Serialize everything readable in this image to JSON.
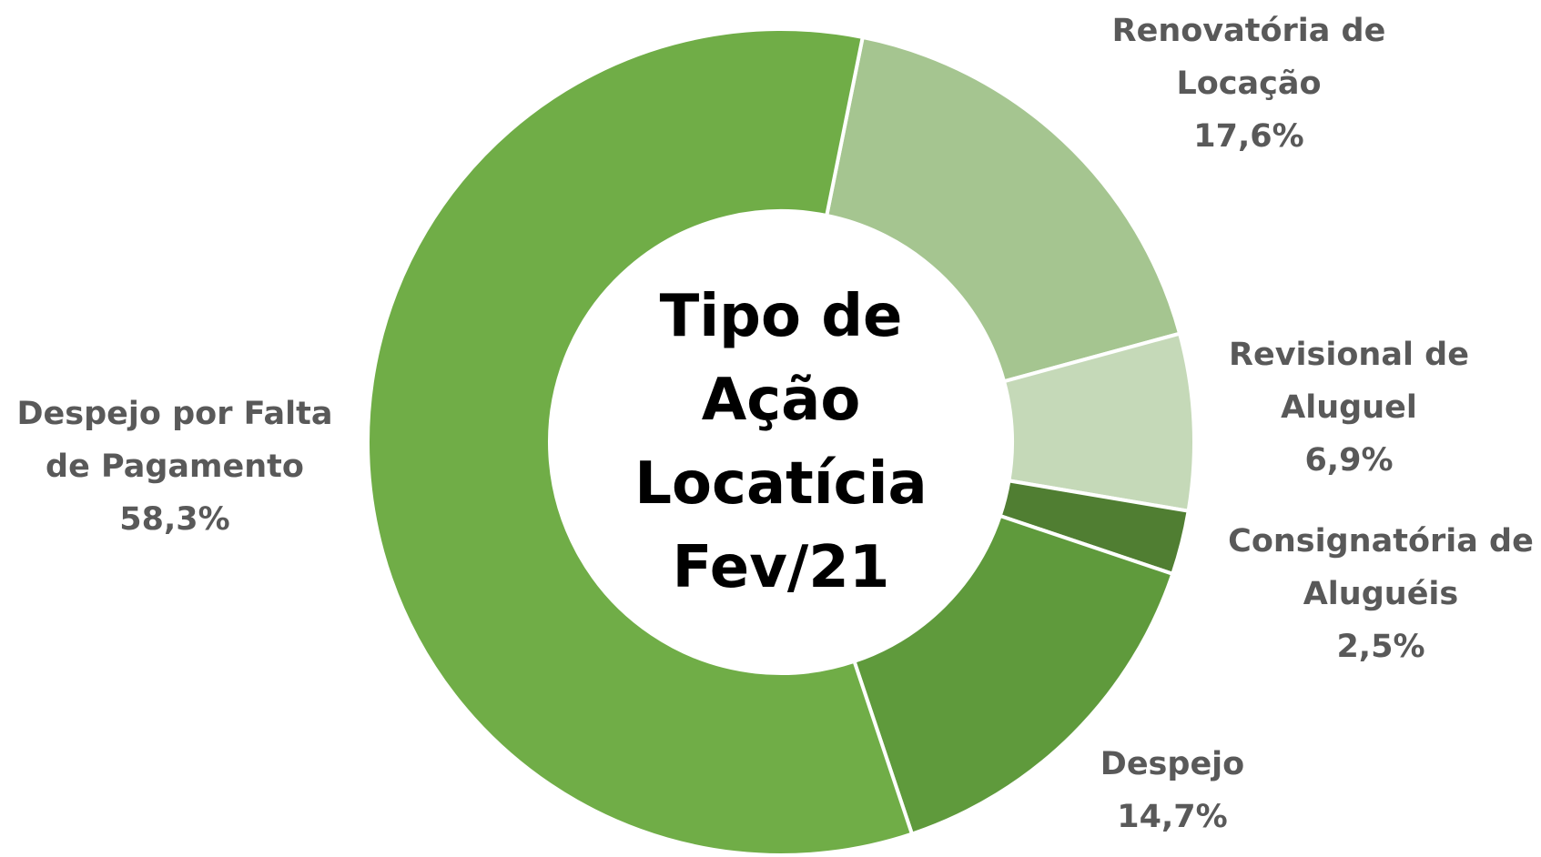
{
  "chart_data": {
    "type": "donut",
    "title": "Tipo de Ação Locatícia Fev/21",
    "categories": [
      "Renovatória de Locação",
      "Revisional de Aluguel",
      "Consignatória de Aluguéis",
      "Despejo",
      "Despejo por Falta de Pagamento"
    ],
    "values": [
      17.6,
      6.9,
      2.5,
      14.7,
      58.3
    ],
    "value_labels": [
      "17,6%",
      "6,9%",
      "2,5%",
      "14,7%",
      "58,3%"
    ],
    "colors": [
      "#a5c590",
      "#c5d9b8",
      "#507e32",
      "#5f9a3c",
      "#70ad47"
    ]
  }
}
